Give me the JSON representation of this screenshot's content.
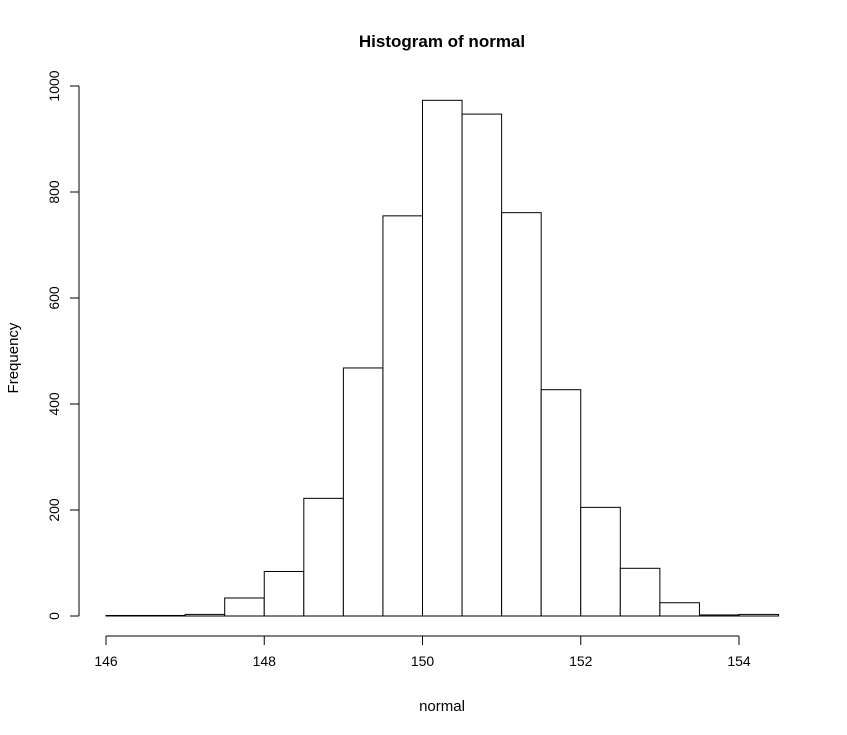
{
  "chart_data": {
    "type": "bar",
    "title": "Histogram of normal",
    "xlabel": "normal",
    "ylabel": "Frequency",
    "xlim": [
      146,
      154.5
    ],
    "ylim": [
      0,
      1000
    ],
    "x_ticks": [
      146,
      148,
      150,
      152,
      154
    ],
    "y_ticks": [
      0,
      200,
      400,
      600,
      800,
      1000
    ],
    "grid": false,
    "bins": [
      {
        "x0": 146.0,
        "x1": 146.5,
        "count": 1
      },
      {
        "x0": 146.5,
        "x1": 147.0,
        "count": 1
      },
      {
        "x0": 147.0,
        "x1": 147.5,
        "count": 3
      },
      {
        "x0": 147.5,
        "x1": 148.0,
        "count": 34
      },
      {
        "x0": 148.0,
        "x1": 148.5,
        "count": 84
      },
      {
        "x0": 148.5,
        "x1": 149.0,
        "count": 222
      },
      {
        "x0": 149.0,
        "x1": 149.5,
        "count": 468
      },
      {
        "x0": 149.5,
        "x1": 150.0,
        "count": 755
      },
      {
        "x0": 150.0,
        "x1": 150.5,
        "count": 973
      },
      {
        "x0": 150.5,
        "x1": 151.0,
        "count": 947
      },
      {
        "x0": 151.0,
        "x1": 151.5,
        "count": 761
      },
      {
        "x0": 151.5,
        "x1": 152.0,
        "count": 427
      },
      {
        "x0": 152.0,
        "x1": 152.5,
        "count": 205
      },
      {
        "x0": 152.5,
        "x1": 153.0,
        "count": 90
      },
      {
        "x0": 153.0,
        "x1": 153.5,
        "count": 25
      },
      {
        "x0": 153.5,
        "x1": 154.0,
        "count": 2
      },
      {
        "x0": 154.0,
        "x1": 154.5,
        "count": 3
      }
    ]
  }
}
